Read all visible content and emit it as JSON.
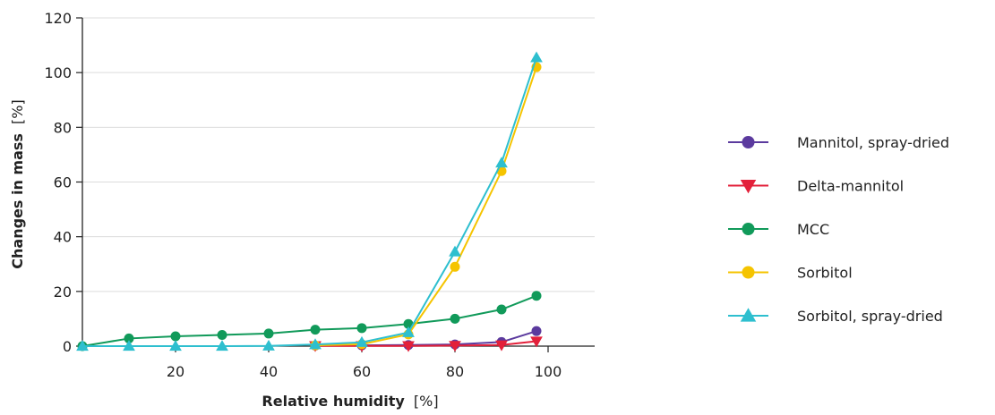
{
  "chart_data": {
    "type": "line",
    "title": "",
    "xlabel": "Relative humidity",
    "xunit": "[%]",
    "ylabel": "Changes in mass",
    "yunit": "[%]",
    "xlim": [
      0,
      110
    ],
    "ylim": [
      0,
      120
    ],
    "x_ticks": [
      20,
      40,
      60,
      80,
      100
    ],
    "y_ticks": [
      0,
      20,
      40,
      60,
      80,
      100,
      120
    ],
    "grid": "horizontal",
    "legend_position": "right",
    "series": [
      {
        "name": "Mannitol, spray-dried",
        "color": "#5b3a9e",
        "marker": "circle",
        "x": [
          50,
          60,
          70,
          80,
          90,
          97.5
        ],
        "y": [
          0.2,
          0.3,
          0.4,
          0.6,
          1.5,
          5.5
        ]
      },
      {
        "name": "Delta-mannitol",
        "color": "#e3203a",
        "marker": "triangle-down",
        "x": [
          50,
          60,
          70,
          80,
          90,
          97.5
        ],
        "y": [
          0.1,
          0.1,
          0.1,
          0.2,
          0.4,
          1.8
        ]
      },
      {
        "name": "MCC",
        "color": "#119a5a",
        "marker": "circle",
        "x": [
          0,
          10,
          20,
          30,
          40,
          50,
          60,
          70,
          80,
          90,
          97.5
        ],
        "y": [
          0,
          2.8,
          3.6,
          4.1,
          4.6,
          6.0,
          6.6,
          8.1,
          10.0,
          13.4,
          18.4
        ]
      },
      {
        "name": "Sorbitol",
        "color": "#f5c400",
        "marker": "circle",
        "x": [
          50,
          60,
          70,
          80,
          90,
          97.5
        ],
        "y": [
          0.3,
          0.7,
          4.3,
          29.0,
          64.0,
          102.0
        ]
      },
      {
        "name": "Sorbitol, spray-dried",
        "color": "#2ebfcf",
        "marker": "triangle-up",
        "x": [
          0,
          10,
          20,
          30,
          40,
          50,
          60,
          70,
          80,
          90,
          97.5
        ],
        "y": [
          0,
          0,
          0,
          0,
          0.1,
          0.6,
          1.4,
          5.0,
          34.5,
          67.0,
          105.5
        ]
      }
    ]
  }
}
